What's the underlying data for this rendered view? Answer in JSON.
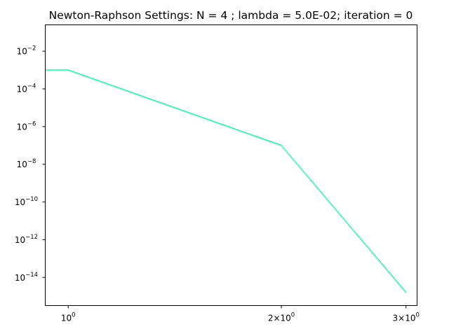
{
  "chart_data": {
    "type": "line",
    "title": "Newton-Raphson Settings: N = 4 ; lambda = 5.0E-02; iteration = 0",
    "xlabel": "",
    "ylabel": "",
    "xscale": "log",
    "yscale": "log",
    "xlim": [
      0.928,
      3.11
    ],
    "ylim": [
      3.2e-16,
      0.25
    ],
    "grid": false,
    "x_ticks": [
      {
        "value": 1,
        "base": "10",
        "exp": "0",
        "coef": ""
      },
      {
        "value": 2,
        "base": "10",
        "exp": "0",
        "coef": "2×"
      },
      {
        "value": 3,
        "base": "10",
        "exp": "0",
        "coef": "3×"
      }
    ],
    "y_ticks": [
      {
        "value": 0.01,
        "base": "10",
        "exp": "−2"
      },
      {
        "value": 0.0001,
        "base": "10",
        "exp": "−4"
      },
      {
        "value": 1e-06,
        "base": "10",
        "exp": "−6"
      },
      {
        "value": 1e-08,
        "base": "10",
        "exp": "−8"
      },
      {
        "value": 1e-10,
        "base": "10",
        "exp": "−10"
      },
      {
        "value": 1e-12,
        "base": "10",
        "exp": "−12"
      },
      {
        "value": 1e-14,
        "base": "10",
        "exp": "−14"
      }
    ],
    "series": [
      {
        "color": "#2ca02c",
        "x": [
          0.928,
          1,
          2,
          3
        ],
        "y": [
          0.001,
          0.001,
          1e-07,
          1.6e-15
        ]
      },
      {
        "color": "#17becf",
        "x": [
          0.928,
          1,
          2,
          3
        ],
        "y": [
          0.00095,
          0.00095,
          9.5e-08,
          1.5e-15
        ]
      },
      {
        "color": "#40e0d0",
        "x": [
          0.928,
          1,
          2,
          3
        ],
        "y": [
          0.00098,
          0.00098,
          9.8e-08,
          1.55e-15
        ]
      },
      {
        "color": "#7fffd4",
        "x": [
          0.928,
          1,
          2,
          3
        ],
        "y": [
          0.00092,
          0.00092,
          9.2e-08,
          1.45e-15
        ]
      }
    ]
  }
}
